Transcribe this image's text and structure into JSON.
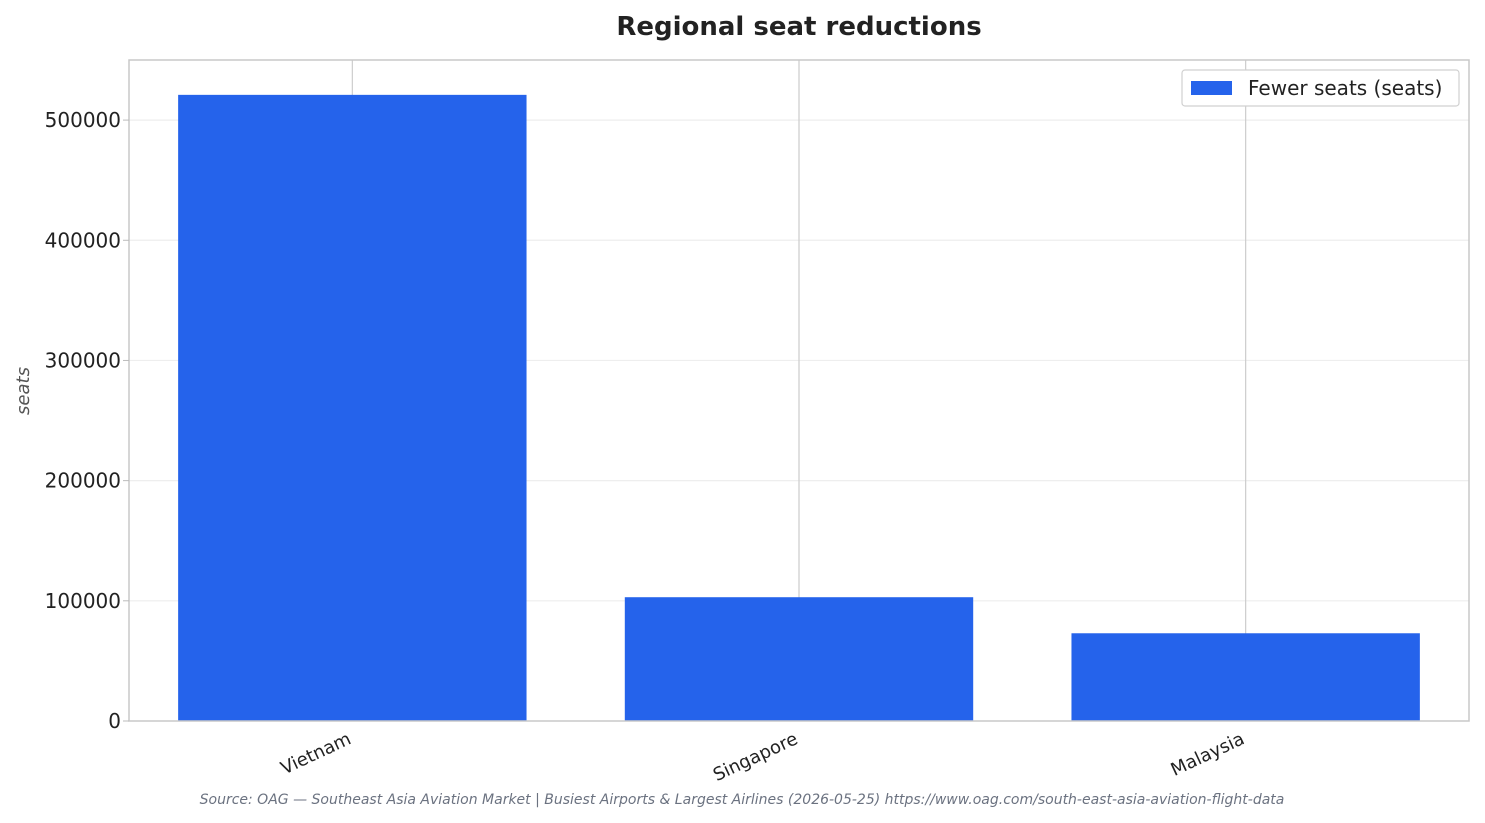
{
  "chart_data": {
    "type": "bar",
    "title": "Regional seat reductions",
    "xlabel": "",
    "ylabel": "seats",
    "categories": [
      "Vietnam",
      "Singapore",
      "Malaysia"
    ],
    "series": [
      {
        "name": "Fewer seats (seats)",
        "values": [
          521000,
          103000,
          73000
        ]
      }
    ],
    "ylim": [
      0,
      550000
    ],
    "yticks": [
      0,
      100000,
      200000,
      300000,
      400000,
      500000
    ],
    "ytick_labels": [
      "0",
      "100000",
      "200000",
      "300000",
      "400000",
      "500000"
    ],
    "grid": true,
    "legend": "top-right",
    "bar_color": "#2563eb",
    "source": "Source: OAG — Southeast Asia Aviation Market | Busiest Airports & Largest Airlines (2026-05-25) https://www.oag.com/south-east-asia-aviation-flight-data"
  }
}
